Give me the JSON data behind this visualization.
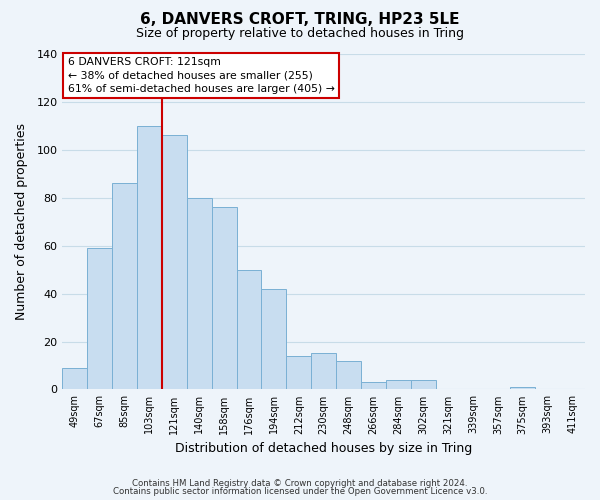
{
  "title": "6, DANVERS CROFT, TRING, HP23 5LE",
  "subtitle": "Size of property relative to detached houses in Tring",
  "xlabel": "Distribution of detached houses by size in Tring",
  "ylabel": "Number of detached properties",
  "bar_labels": [
    "49sqm",
    "67sqm",
    "85sqm",
    "103sqm",
    "121sqm",
    "140sqm",
    "158sqm",
    "176sqm",
    "194sqm",
    "212sqm",
    "230sqm",
    "248sqm",
    "266sqm",
    "284sqm",
    "302sqm",
    "321sqm",
    "339sqm",
    "357sqm",
    "375sqm",
    "393sqm",
    "411sqm"
  ],
  "bar_values": [
    9,
    59,
    86,
    110,
    106,
    80,
    76,
    50,
    42,
    14,
    15,
    12,
    3,
    4,
    4,
    0,
    0,
    0,
    1,
    0,
    0
  ],
  "bar_color": "#c8ddf0",
  "bar_edge_color": "#7ab0d4",
  "highlight_bar_index": 4,
  "highlight_line_color": "#cc0000",
  "annotation_line1": "6 DANVERS CROFT: 121sqm",
  "annotation_line2": "← 38% of detached houses are smaller (255)",
  "annotation_line3": "61% of semi-detached houses are larger (405) →",
  "ylim": [
    0,
    140
  ],
  "yticks": [
    0,
    20,
    40,
    60,
    80,
    100,
    120,
    140
  ],
  "grid_color": "#c8dce8",
  "background_color": "#eef4fa",
  "footer_line1": "Contains HM Land Registry data © Crown copyright and database right 2024.",
  "footer_line2": "Contains public sector information licensed under the Open Government Licence v3.0."
}
